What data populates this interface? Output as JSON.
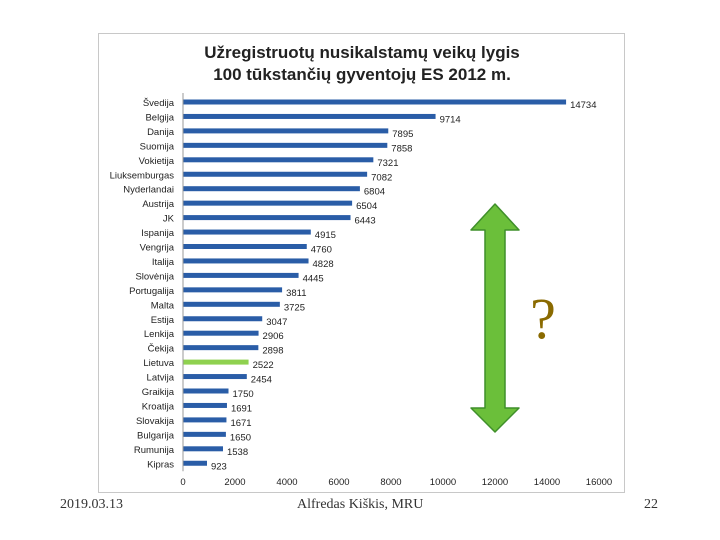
{
  "chart_data": {
    "type": "bar",
    "orientation": "horizontal",
    "title_lines": [
      "Užregistruotų nusikalstamų veikų lygis",
      "100 tūkstančių gyventojų ES 2012 m."
    ],
    "categories": [
      "Švedija",
      "Belgija",
      "Danija",
      "Suomija",
      "Vokietija",
      "Liuksemburgas",
      "Nyderlandai",
      "Austrija",
      "JK",
      "Ispanija",
      "Vengrija",
      "Italija",
      "Slovėnija",
      "Portugalija",
      "Malta",
      "Estija",
      "Lenkija",
      "Čekija",
      "Lietuva",
      "Latvija",
      "Graikija",
      "Kroatija",
      "Slovakija",
      "Bulgarija",
      "Rumunija",
      "Kipras"
    ],
    "values": [
      14734,
      9714,
      7895,
      7858,
      7321,
      7082,
      6804,
      6504,
      6443,
      4915,
      4760,
      4828,
      4445,
      3811,
      3725,
      3047,
      2906,
      2898,
      2522,
      2454,
      1750,
      1691,
      1671,
      1650,
      1538,
      923
    ],
    "highlight_category": "Lietuva",
    "xlim": [
      0,
      16000
    ],
    "xticks": [
      0,
      2000,
      4000,
      6000,
      8000,
      10000,
      12000,
      14000,
      16000
    ],
    "xlabel": "",
    "ylabel": "",
    "grid": "none",
    "colors": {
      "bar": "#2a5da7",
      "highlight": "#8fd14f",
      "arrow": "#6bbf3a",
      "arrow_outline": "#3f8f2a",
      "question": "#8a6a00"
    },
    "annotation": "?"
  },
  "footer": {
    "date": "2019.03.13",
    "author": "Alfredas Kiškis, MRU",
    "page": "22"
  }
}
